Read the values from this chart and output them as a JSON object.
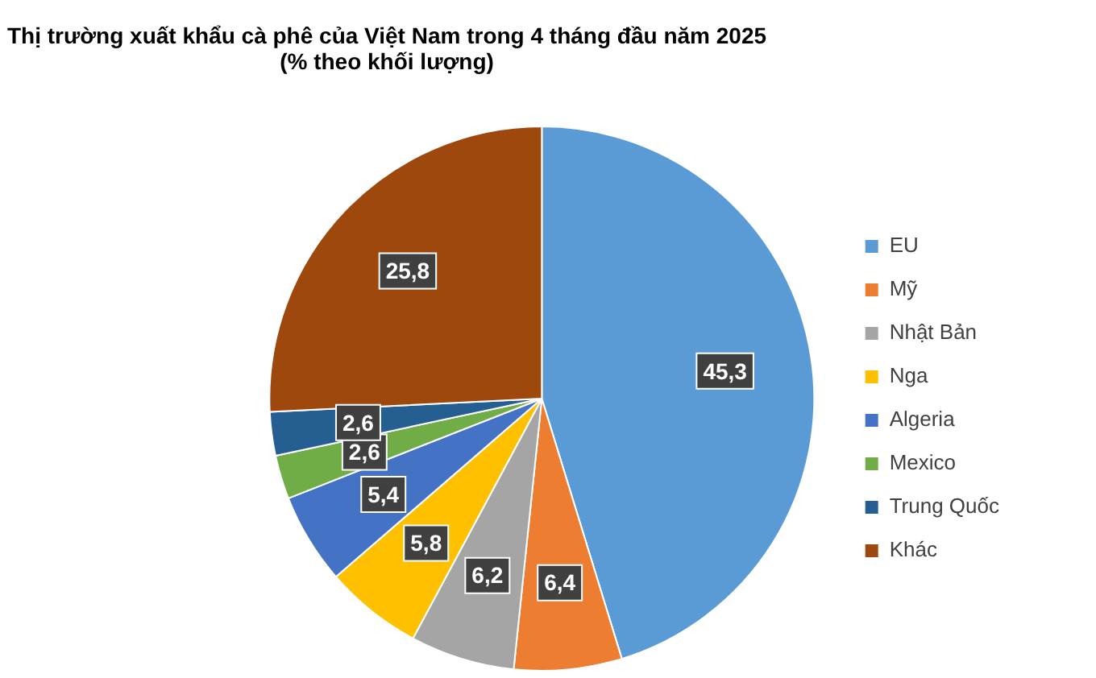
{
  "chart_data": {
    "type": "pie",
    "title": "Thị trường xuất khẩu cà phê của Việt Nam trong 4 tháng đầu năm 2025",
    "subtitle": "(% theo khối lượng)",
    "categories": [
      "EU",
      "Mỹ",
      "Nhật Bản",
      "Nga",
      "Algeria",
      "Mexico",
      "Trung Quốc",
      "Khác"
    ],
    "values": [
      45.3,
      6.4,
      6.2,
      5.8,
      5.4,
      2.6,
      2.6,
      25.8
    ],
    "colors": [
      "#5b9bd5",
      "#ed7d31",
      "#a5a5a5",
      "#ffc000",
      "#4472c4",
      "#70ad47",
      "#255e91",
      "#9e480e"
    ],
    "value_labels": [
      "45,3",
      "6,4",
      "6,2",
      "5,8",
      "5,4",
      "2,6",
      "2,6",
      "25,8"
    ],
    "legend": "right"
  }
}
